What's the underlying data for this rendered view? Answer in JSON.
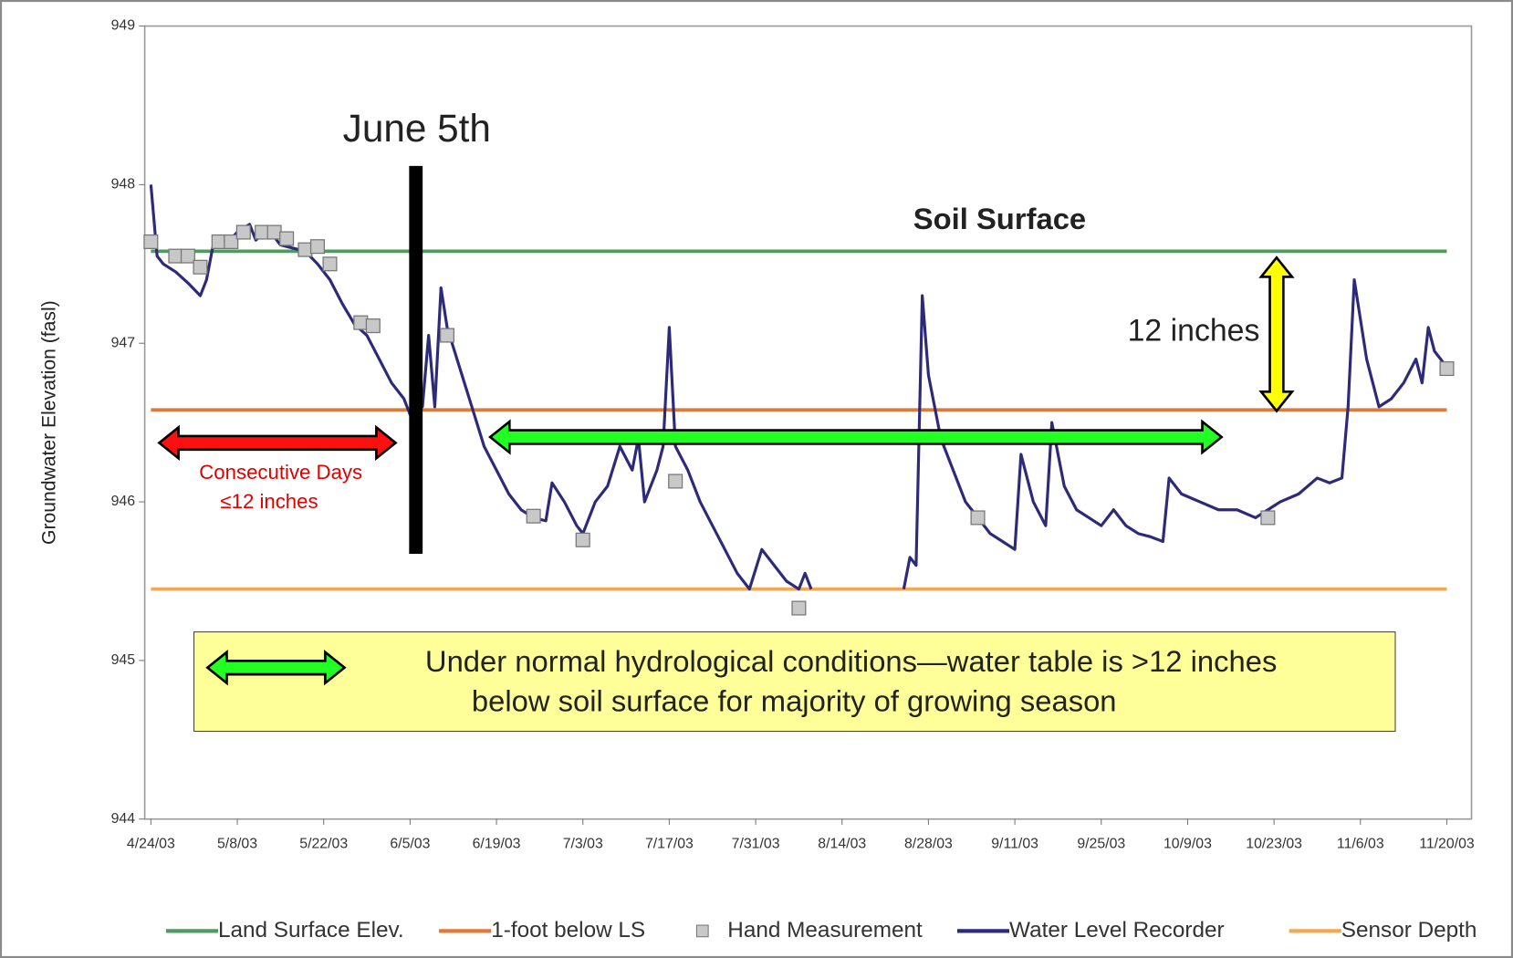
{
  "chart_data": {
    "type": "line",
    "y_label": "Groundwater Elevation (fasl)",
    "xlim": [
      "2003-04-23",
      "2003-11-24"
    ],
    "xticks": [
      {
        "value": "2003-04-24",
        "label": "4/24/03"
      },
      {
        "value": "2003-05-08",
        "label": "5/8/03"
      },
      {
        "value": "2003-05-22",
        "label": "5/22/03"
      },
      {
        "value": "2003-06-05",
        "label": "6/5/03"
      },
      {
        "value": "2003-06-19",
        "label": "6/19/03"
      },
      {
        "value": "2003-07-03",
        "label": "7/3/03"
      },
      {
        "value": "2003-07-17",
        "label": "7/17/03"
      },
      {
        "value": "2003-07-31",
        "label": "7/31/03"
      },
      {
        "value": "2003-08-14",
        "label": "8/14/03"
      },
      {
        "value": "2003-08-28",
        "label": "8/28/03"
      },
      {
        "value": "2003-09-11",
        "label": "9/11/03"
      },
      {
        "value": "2003-09-25",
        "label": "9/25/03"
      },
      {
        "value": "2003-10-09",
        "label": "10/9/03"
      },
      {
        "value": "2003-10-23",
        "label": "10/23/03"
      },
      {
        "value": "2003-11-06",
        "label": "11/6/03"
      },
      {
        "value": "2003-11-20",
        "label": "11/20/03"
      }
    ],
    "ylim": [
      944,
      949
    ],
    "yticks": [
      944,
      945,
      946,
      947,
      948,
      949
    ],
    "series": [
      {
        "name": "Land Surface Elev.",
        "color": "#4e9a5f",
        "marker": "line",
        "x": [
          "2003-04-24",
          "2003-11-20"
        ],
        "values": [
          947.58,
          947.58
        ]
      },
      {
        "name": "1-foot below LS",
        "color": "#e07a3a",
        "marker": "line",
        "x": [
          "2003-04-24",
          "2003-11-20"
        ],
        "values": [
          946.58,
          946.58
        ]
      },
      {
        "name": "Hand Measurement",
        "color": "#c8c8c8",
        "marker": "square",
        "x": [
          "2003-04-24",
          "2003-04-28",
          "2003-04-30",
          "2003-05-02",
          "2003-05-05",
          "2003-05-07",
          "2003-05-09",
          "2003-05-12",
          "2003-05-14",
          "2003-05-16",
          "2003-05-19",
          "2003-05-21",
          "2003-05-23",
          "2003-05-28",
          "2003-05-30",
          "2003-06-11",
          "2003-06-25",
          "2003-07-03",
          "2003-07-18",
          "2003-08-07",
          "2003-09-05",
          "2003-10-22",
          "2003-11-20"
        ],
        "values": [
          947.64,
          947.55,
          947.55,
          947.48,
          947.64,
          947.64,
          947.7,
          947.7,
          947.7,
          947.66,
          947.59,
          947.61,
          947.5,
          947.13,
          947.11,
          947.05,
          945.91,
          945.76,
          946.13,
          945.33,
          945.9,
          945.9,
          946.84
        ]
      },
      {
        "name": "Water Level Recorder",
        "color": "#2e2a7a",
        "marker": "line",
        "x": [
          "2003-04-24",
          "2003-04-25",
          "2003-04-26",
          "2003-04-28",
          "2003-04-30",
          "2003-05-02",
          "2003-05-03",
          "2003-05-04",
          "2003-05-06",
          "2003-05-08",
          "2003-05-10",
          "2003-05-11",
          "2003-05-13",
          "2003-05-15",
          "2003-05-17",
          "2003-05-19",
          "2003-05-21",
          "2003-05-23",
          "2003-05-25",
          "2003-05-27",
          "2003-05-29",
          "2003-05-31",
          "2003-06-02",
          "2003-06-04",
          "2003-06-05",
          "2003-06-06",
          "2003-06-07",
          "2003-06-08",
          "2003-06-09",
          "2003-06-10",
          "2003-06-11",
          "2003-06-13",
          "2003-06-15",
          "2003-06-17",
          "2003-06-19",
          "2003-06-21",
          "2003-06-23",
          "2003-06-25",
          "2003-06-27",
          "2003-06-28",
          "2003-06-30",
          "2003-07-02",
          "2003-07-03",
          "2003-07-05",
          "2003-07-07",
          "2003-07-09",
          "2003-07-11",
          "2003-07-12",
          "2003-07-13",
          "2003-07-15",
          "2003-07-16",
          "2003-07-17",
          "2003-07-18",
          "2003-07-20",
          "2003-07-22",
          "2003-07-24",
          "2003-07-26",
          "2003-07-28",
          "2003-07-30",
          "2003-08-01",
          "2003-08-03",
          "2003-08-05",
          "2003-08-07",
          "2003-08-08",
          "2003-08-09",
          "2003-08-16",
          "2003-08-24",
          "2003-08-25",
          "2003-08-26",
          "2003-08-27",
          "2003-08-28",
          "2003-08-30",
          "2003-09-01",
          "2003-09-03",
          "2003-09-05",
          "2003-09-07",
          "2003-09-09",
          "2003-09-11",
          "2003-09-12",
          "2003-09-14",
          "2003-09-16",
          "2003-09-17",
          "2003-09-19",
          "2003-09-21",
          "2003-09-23",
          "2003-09-25",
          "2003-09-27",
          "2003-09-29",
          "2003-10-01",
          "2003-10-03",
          "2003-10-05",
          "2003-10-06",
          "2003-10-08",
          "2003-10-11",
          "2003-10-14",
          "2003-10-17",
          "2003-10-20",
          "2003-10-22",
          "2003-10-24",
          "2003-10-27",
          "2003-10-30",
          "2003-11-01",
          "2003-11-03",
          "2003-11-04",
          "2003-11-05",
          "2003-11-07",
          "2003-11-09",
          "2003-11-11",
          "2003-11-13",
          "2003-11-15",
          "2003-11-16",
          "2003-11-17",
          "2003-11-18",
          "2003-11-20"
        ],
        "values": [
          948.0,
          947.55,
          947.5,
          947.45,
          947.38,
          947.3,
          947.4,
          947.6,
          947.62,
          947.7,
          947.75,
          947.65,
          947.72,
          947.62,
          947.6,
          947.58,
          947.5,
          947.4,
          947.25,
          947.12,
          947.05,
          946.9,
          946.75,
          946.65,
          946.55,
          946.9,
          946.6,
          947.05,
          946.6,
          947.35,
          947.1,
          946.85,
          946.6,
          946.35,
          946.2,
          946.05,
          945.95,
          945.9,
          945.88,
          946.12,
          946.0,
          945.85,
          945.8,
          946.0,
          946.1,
          946.35,
          946.2,
          946.4,
          946.0,
          946.2,
          946.35,
          947.1,
          946.35,
          946.2,
          946.0,
          945.85,
          945.7,
          945.55,
          945.45,
          945.7,
          945.6,
          945.5,
          945.45,
          945.55,
          945.45,
          null,
          945.45,
          945.65,
          945.6,
          947.3,
          946.8,
          946.4,
          946.2,
          946.0,
          945.9,
          945.8,
          945.75,
          945.7,
          946.3,
          946.0,
          945.85,
          946.5,
          946.1,
          945.95,
          945.9,
          945.85,
          945.95,
          945.85,
          945.8,
          945.78,
          945.75,
          946.15,
          946.05,
          946.0,
          945.95,
          945.95,
          945.9,
          945.95,
          946.0,
          946.05,
          946.15,
          946.12,
          946.15,
          946.6,
          947.4,
          946.9,
          946.6,
          946.65,
          946.75,
          946.9,
          946.75,
          947.1,
          946.95,
          946.85
        ]
      },
      {
        "name": "Sensor Depth",
        "color": "#f2a955",
        "marker": "line",
        "x": [
          "2003-04-24",
          "2003-11-20"
        ],
        "values": [
          945.45,
          945.45
        ]
      }
    ],
    "annotations": {
      "june": "June 5th",
      "soil": "Soil Surface",
      "twelve": "12 inches",
      "consecutive_1": "Consecutive Days",
      "consecutive_2": "≤12 inches",
      "note_1": "Under normal hydrological conditions—water table is >12 inches",
      "note_2": "below soil surface for majority of growing season"
    }
  }
}
